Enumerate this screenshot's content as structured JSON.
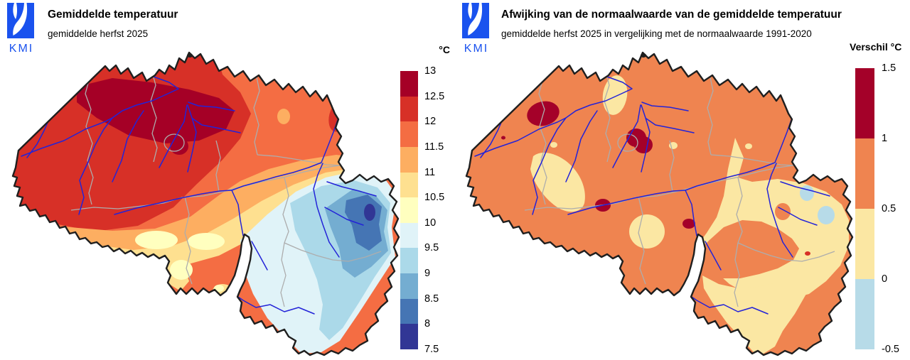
{
  "brand": {
    "logo_text": "KMI",
    "logo_color": "#1A52EE"
  },
  "panels": {
    "left": {
      "title": "Gemiddelde temperatuur",
      "subtitle": "gemiddelde herfst 2025",
      "legend": {
        "unit_label": "°C",
        "tick_labels": [
          "13",
          "12.5",
          "12",
          "11.5",
          "11",
          "10.5",
          "10",
          "9.5",
          "9",
          "8.5",
          "8",
          "7.5"
        ],
        "band_colors": [
          "#A50026",
          "#D73027",
          "#F46D43",
          "#FDAE61",
          "#FEE090",
          "#FFFFBF",
          "#E0F3F8",
          "#ABD9E9",
          "#74ADD1",
          "#4575B4",
          "#313695"
        ]
      }
    },
    "right": {
      "title": "Afwijking van de normaalwaarde van de gemiddelde temperatuur",
      "subtitle": "gemiddelde herfst 2025 in vergelijking met de normaalwaarde 1991-2020",
      "legend": {
        "unit_label": "Verschil °C",
        "tick_labels": [
          "1.5",
          "1",
          "0.5",
          "0",
          "-0.5"
        ],
        "band_colors": [
          "#A40129",
          "#EF8450",
          "#FBE7A3",
          "#B7DBE8"
        ]
      }
    }
  },
  "map_style": {
    "country_border_color": "#1F1F1F",
    "province_border_color": "#ADADAD",
    "river_color": "#2323D8",
    "background_color": "#FFFFFF"
  }
}
